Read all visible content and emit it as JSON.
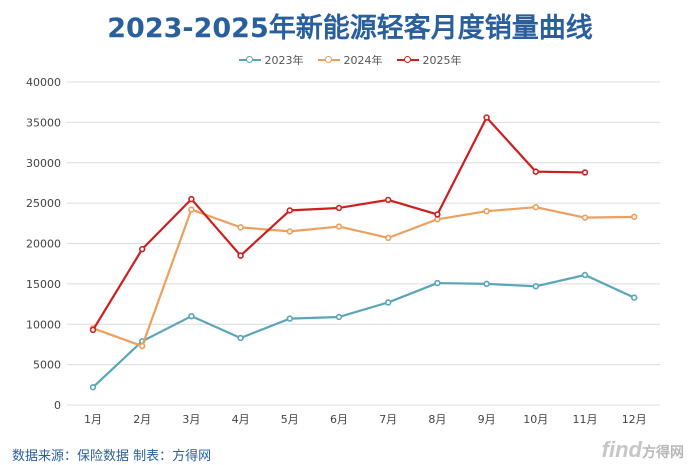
{
  "title": "2023-2025年新能源轻客月度销量曲线",
  "source_note": "数据来源：保险数据 制表：方得网",
  "logo": {
    "main": "find",
    "cn": "方得网"
  },
  "colors": {
    "y2023": "#5aa5b8",
    "y2024": "#eba05e",
    "y2025": "#cc1f1f",
    "grid": "#dcdcdc",
    "axis_text": "#444444"
  },
  "chart_data": {
    "type": "line",
    "title": "2023-2025年新能源轻客月度销量曲线",
    "xlabel": "",
    "ylabel": "",
    "categories": [
      "1月",
      "2月",
      "3月",
      "4月",
      "5月",
      "6月",
      "7月",
      "8月",
      "9月",
      "10月",
      "11月",
      "12月"
    ],
    "ylim": [
      0,
      40000
    ],
    "yticks": [
      0,
      5000,
      10000,
      15000,
      20000,
      25000,
      30000,
      35000,
      40000
    ],
    "grid": true,
    "legend_position": "top-center",
    "series": [
      {
        "name": "2023年",
        "color": "#5aa5b8",
        "values": [
          2200,
          7900,
          11000,
          8300,
          10700,
          10900,
          12700,
          15100,
          15000,
          14700,
          16100,
          13300
        ]
      },
      {
        "name": "2024年",
        "color": "#eba05e",
        "values": [
          9500,
          7300,
          24200,
          22000,
          21500,
          22100,
          20700,
          23000,
          24000,
          24500,
          23200,
          23300
        ]
      },
      {
        "name": "2025年",
        "color": "#cc1f1f",
        "values": [
          9300,
          19300,
          25500,
          18500,
          24100,
          24400,
          25400,
          23600,
          35600,
          28900,
          28800,
          null
        ]
      }
    ]
  }
}
